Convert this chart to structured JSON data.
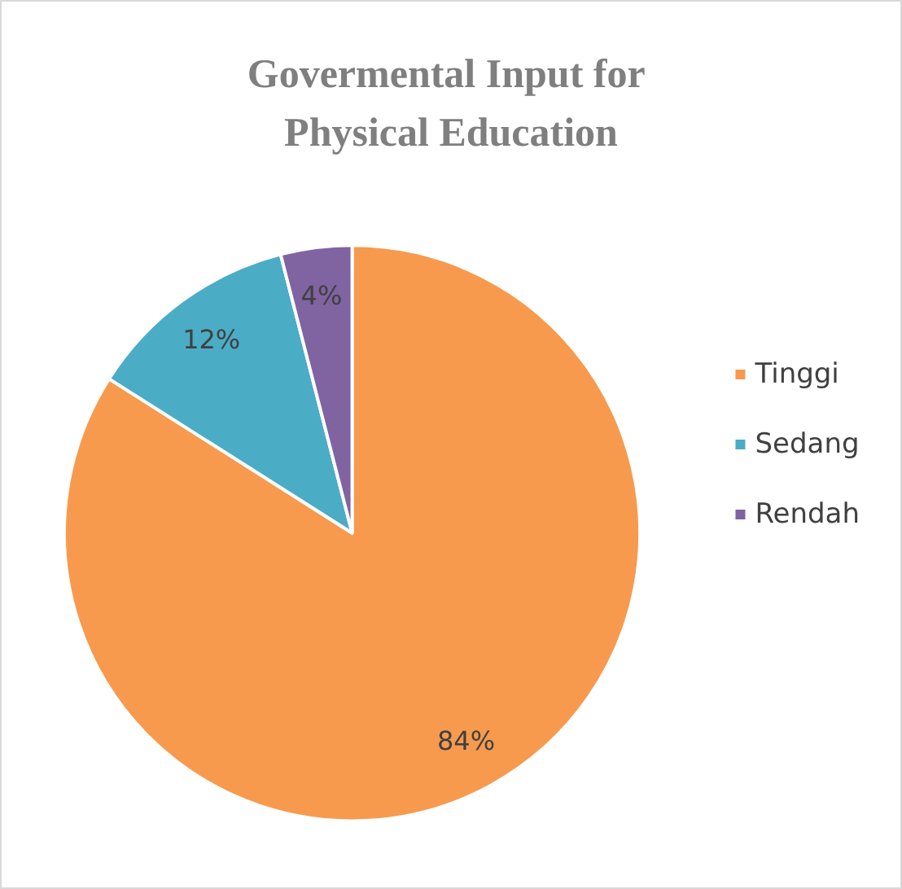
{
  "chart_data": {
    "type": "pie",
    "title": "Govermental Input for Physical Education",
    "categories": [
      "Tinggi",
      "Sedang",
      "Rendah"
    ],
    "values": [
      84,
      12,
      4
    ],
    "colors": [
      "#f79a4e",
      "#4bacc6",
      "#8064a2"
    ],
    "value_labels": [
      "84%",
      "12%",
      "4%"
    ],
    "legend": "right"
  }
}
